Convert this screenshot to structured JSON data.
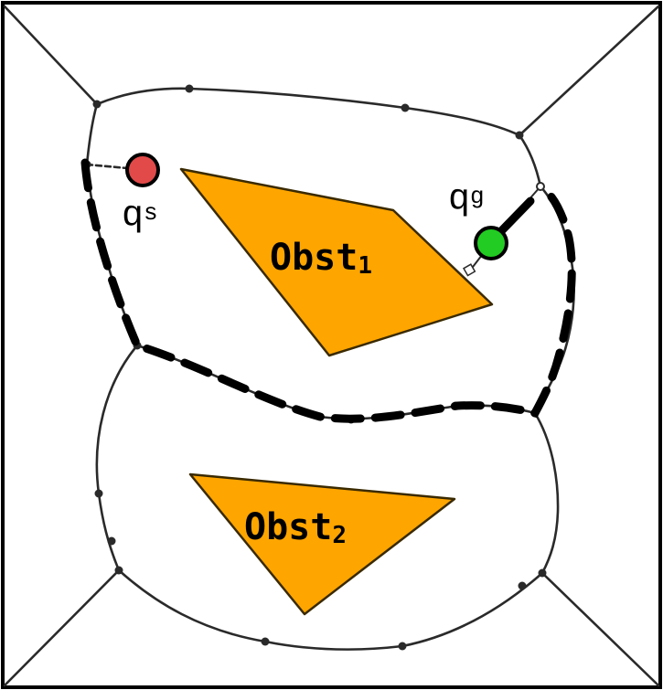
{
  "colors": {
    "background": "#ffffff",
    "frame": "#000000",
    "roadmap": "#2a2a2a",
    "obstacle_fill": "#ffa500",
    "obstacle_stroke": "#3a2a00",
    "start_point": "#e24a4a",
    "goal_point": "#22cc22",
    "path": "#000000"
  },
  "obstacles": [
    {
      "label": "Obst",
      "subscript": "1"
    },
    {
      "label": "Obst",
      "subscript": "2"
    }
  ],
  "start": {
    "label": "q",
    "subscript": "s"
  },
  "goal": {
    "label": "q",
    "subscript": "g"
  }
}
